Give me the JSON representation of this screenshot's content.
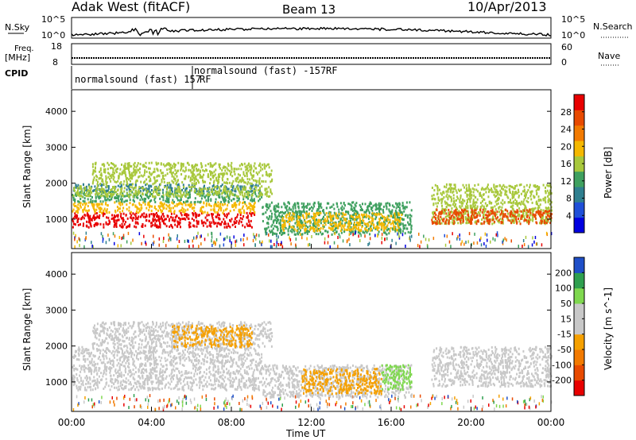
{
  "header": {
    "site": "Adak West (fitACF)",
    "beam": "Beam 13",
    "date": "10/Apr/2013"
  },
  "noise_panel": {
    "left_label": "N.Sky",
    "right_label": "N.Search",
    "left_ticks": [
      "10^5",
      "10^0"
    ],
    "right_ticks": [
      "10^5",
      "10^0"
    ]
  },
  "freq_panel": {
    "left_label_line1": "Freq.",
    "left_label_line2": "[MHz]",
    "right_label": "Nave",
    "left_ticks": [
      "18",
      "8"
    ],
    "right_ticks": [
      "60",
      "0"
    ]
  },
  "cpid_panel": {
    "label": "CPID",
    "modes": [
      "normalsound (fast) 157",
      "RF",
      "normalsound (fast) -157",
      "RF"
    ]
  },
  "chart_data": [
    {
      "type": "heatmap",
      "title": "",
      "xlabel": "",
      "ylabel": "Slant Range [km]",
      "x_ticks": [
        "00:00",
        "04:00",
        "08:00",
        "12:00",
        "16:00",
        "20:00",
        "00:00"
      ],
      "y_ticks": [
        1000,
        2000,
        3000,
        4000
      ],
      "xlim_hours": [
        0,
        24
      ],
      "ylim_km": [
        180,
        4600
      ],
      "colorbar": {
        "label": "Power [dB]",
        "ticks": [
          "28",
          "24",
          "20",
          "16",
          "12",
          "8",
          "4"
        ],
        "colors": [
          "#0000e0",
          "#1f4fd8",
          "#2f7f8f",
          "#3fa05f",
          "#a8c83c",
          "#f5b800",
          "#f27a00",
          "#e84a00",
          "#e80000"
        ]
      },
      "regions": [
        {
          "t0": 0.0,
          "t1": 9.2,
          "r0": 800,
          "r1": 1200,
          "color_index": 8
        },
        {
          "t0": 0.0,
          "t1": 9.2,
          "r0": 1200,
          "r1": 1500,
          "color_index": 5
        },
        {
          "t0": 0.0,
          "t1": 9.5,
          "r0": 1500,
          "r1": 1800,
          "color_index": 3
        },
        {
          "t0": 0.0,
          "t1": 9.5,
          "r0": 1800,
          "r1": 2000,
          "color_index": 2
        },
        {
          "t0": 0.0,
          "t1": 10.0,
          "r0": 1650,
          "r1": 1950,
          "color_index": 4
        },
        {
          "t0": 1.0,
          "t1": 10.0,
          "r0": 2000,
          "r1": 2600,
          "color_index": 4
        },
        {
          "t0": 9.5,
          "t1": 17.0,
          "r0": 600,
          "r1": 1500,
          "color_index": 3
        },
        {
          "t0": 10.5,
          "t1": 16.5,
          "r0": 700,
          "r1": 1200,
          "color_index": 5
        },
        {
          "t0": 18.0,
          "t1": 24.0,
          "r0": 900,
          "r1": 2000,
          "color_index": 4
        },
        {
          "t0": 18.0,
          "t1": 24.0,
          "r0": 900,
          "r1": 1300,
          "color_index": 7
        }
      ]
    },
    {
      "type": "heatmap",
      "title": "",
      "xlabel": "Time UT",
      "ylabel": "Slant Range [km]",
      "x_ticks": [
        "00:00",
        "04:00",
        "08:00",
        "12:00",
        "16:00",
        "20:00",
        "00:00"
      ],
      "y_ticks": [
        1000,
        2000,
        3000,
        4000
      ],
      "xlim_hours": [
        0,
        24
      ],
      "ylim_km": [
        180,
        4600
      ],
      "colorbar": {
        "label": "Velocity [m s^-1]",
        "ticks": [
          "200",
          "100",
          "50",
          "15",
          "-15",
          "-50",
          "-100",
          "-200"
        ],
        "colors": [
          "#e80000",
          "#e84a00",
          "#f27a00",
          "#f5a000",
          "#c8c8c8",
          "#c8c8c8",
          "#7fd84f",
          "#2f9f4f",
          "#1f4fc8"
        ]
      },
      "regions": [
        {
          "t0": 0.0,
          "t1": 9.5,
          "r0": 800,
          "r1": 2000,
          "color_index": 4
        },
        {
          "t0": 1.0,
          "t1": 10.0,
          "r0": 2000,
          "r1": 2700,
          "color_index": 4
        },
        {
          "t0": 5.0,
          "t1": 9.0,
          "r0": 2000,
          "r1": 2600,
          "color_index": 3
        },
        {
          "t0": 9.5,
          "t1": 17.0,
          "r0": 600,
          "r1": 1500,
          "color_index": 4
        },
        {
          "t0": 11.5,
          "t1": 15.5,
          "r0": 700,
          "r1": 1400,
          "color_index": 3
        },
        {
          "t0": 15.5,
          "t1": 17.0,
          "r0": 800,
          "r1": 1500,
          "color_index": 6
        },
        {
          "t0": 18.0,
          "t1": 24.0,
          "r0": 900,
          "r1": 2000,
          "color_index": 4
        }
      ]
    }
  ]
}
